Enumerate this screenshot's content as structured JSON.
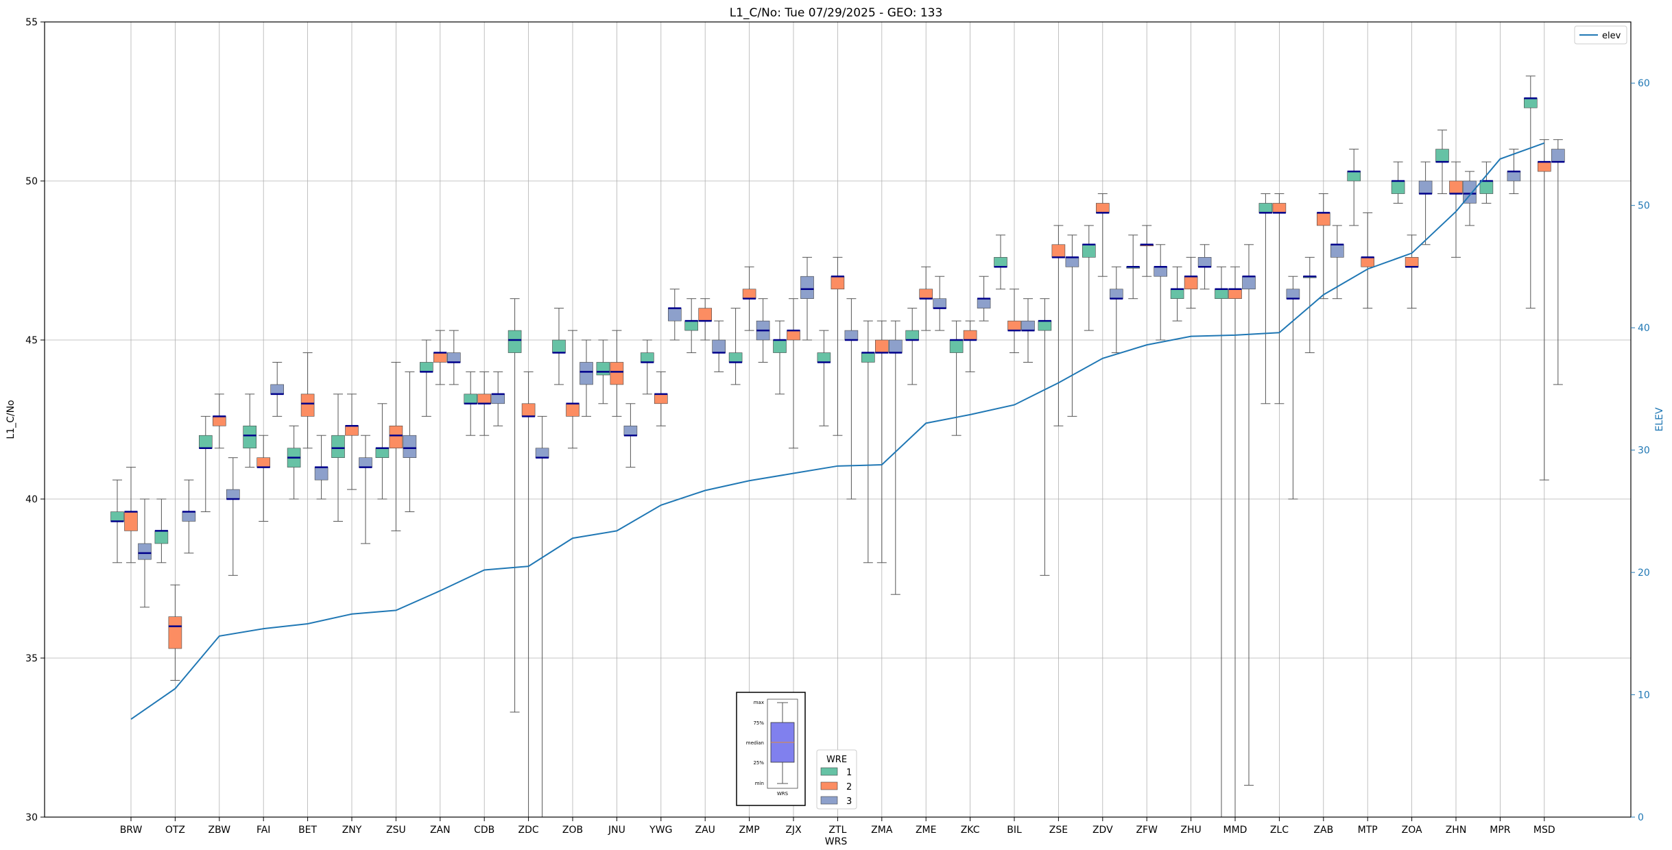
{
  "chart_data": {
    "type": "box",
    "title": "L1_C/No: Tue 07/29/2025 - GEO: 133",
    "xlabel": "WRS",
    "ylabel": "L1_C/No",
    "y2label": "ELEV",
    "ylim": [
      30,
      55
    ],
    "y2lim": [
      0,
      65
    ],
    "yticks": [
      30,
      35,
      40,
      45,
      50,
      55
    ],
    "y2ticks": [
      0,
      10,
      20,
      30,
      40,
      50,
      60
    ],
    "grid": true,
    "colors": {
      "1": "#66c2a5",
      "2": "#fc8d62",
      "3": "#8da0cb",
      "median": "#00008b",
      "elev": "#1f77b4",
      "whisker": "#555555"
    },
    "categories": [
      "BRW",
      "OTZ",
      "ZBW",
      "FAI",
      "BET",
      "ZNY",
      "ZSU",
      "ZAN",
      "CDB",
      "ZDC",
      "ZOB",
      "JNU",
      "YWG",
      "ZAU",
      "ZMP",
      "ZJX",
      "ZTL",
      "ZMA",
      "ZME",
      "ZKC",
      "BIL",
      "ZSE",
      "ZDV",
      "ZFW",
      "ZHU",
      "MMD",
      "ZLC",
      "ZAB",
      "MTP",
      "ZOA",
      "ZHN",
      "MPR",
      "MSD"
    ],
    "elev_legend": "elev",
    "legend_title": "WRE",
    "legend_labels": [
      "1",
      "2",
      "3"
    ],
    "key_labels": [
      "max",
      "75%",
      "median",
      "25%",
      "min",
      "WRS"
    ],
    "elev": [
      8.0,
      10.5,
      14.8,
      15.4,
      15.8,
      16.6,
      16.9,
      18.5,
      20.2,
      20.5,
      22.8,
      23.4,
      25.5,
      26.7,
      27.5,
      28.1,
      28.7,
      28.8,
      32.2,
      32.9,
      33.7,
      35.5,
      37.5,
      38.6,
      39.3,
      39.4,
      39.6,
      42.7,
      44.8,
      46.1,
      49.5,
      53.8,
      55.1
    ],
    "boxes": [
      {
        "wrs": "BRW",
        "wre": 1,
        "min": 38.0,
        "q1": 39.3,
        "median": 39.3,
        "q3": 39.6,
        "max": 40.6
      },
      {
        "wrs": "BRW",
        "wre": 2,
        "min": 38.0,
        "q1": 39.0,
        "median": 39.6,
        "q3": 39.6,
        "max": 41.0
      },
      {
        "wrs": "BRW",
        "wre": 3,
        "min": 36.6,
        "q1": 38.1,
        "median": 38.3,
        "q3": 38.6,
        "max": 40.0
      },
      {
        "wrs": "OTZ",
        "wre": 1,
        "min": 38.0,
        "q1": 38.6,
        "median": 39.0,
        "q3": 39.0,
        "max": 40.0
      },
      {
        "wrs": "OTZ",
        "wre": 2,
        "min": 34.3,
        "q1": 35.3,
        "median": 36.0,
        "q3": 36.3,
        "max": 37.3
      },
      {
        "wrs": "OTZ",
        "wre": 3,
        "min": 38.3,
        "q1": 39.3,
        "median": 39.6,
        "q3": 39.6,
        "max": 40.6
      },
      {
        "wrs": "ZBW",
        "wre": 1,
        "min": 39.6,
        "q1": 41.6,
        "median": 41.6,
        "q3": 42.0,
        "max": 42.6
      },
      {
        "wrs": "ZBW",
        "wre": 2,
        "min": 41.6,
        "q1": 42.3,
        "median": 42.6,
        "q3": 42.6,
        "max": 43.3
      },
      {
        "wrs": "ZBW",
        "wre": 3,
        "min": 37.6,
        "q1": 40.0,
        "median": 40.0,
        "q3": 40.3,
        "max": 41.3
      },
      {
        "wrs": "FAI",
        "wre": 1,
        "min": 41.0,
        "q1": 41.6,
        "median": 42.0,
        "q3": 42.3,
        "max": 43.3
      },
      {
        "wrs": "FAI",
        "wre": 2,
        "min": 39.3,
        "q1": 41.0,
        "median": 41.0,
        "q3": 41.3,
        "max": 42.0
      },
      {
        "wrs": "FAI",
        "wre": 3,
        "min": 42.6,
        "q1": 43.3,
        "median": 43.3,
        "q3": 43.6,
        "max": 44.3
      },
      {
        "wrs": "BET",
        "wre": 1,
        "min": 40.0,
        "q1": 41.0,
        "median": 41.3,
        "q3": 41.6,
        "max": 42.3
      },
      {
        "wrs": "BET",
        "wre": 2,
        "min": 41.6,
        "q1": 42.6,
        "median": 43.0,
        "q3": 43.3,
        "max": 44.6
      },
      {
        "wrs": "BET",
        "wre": 3,
        "min": 40.0,
        "q1": 40.6,
        "median": 41.0,
        "q3": 41.0,
        "max": 42.0
      },
      {
        "wrs": "ZNY",
        "wre": 1,
        "min": 39.3,
        "q1": 41.3,
        "median": 41.6,
        "q3": 42.0,
        "max": 43.3
      },
      {
        "wrs": "ZNY",
        "wre": 2,
        "min": 40.3,
        "q1": 42.0,
        "median": 42.3,
        "q3": 42.3,
        "max": 43.3
      },
      {
        "wrs": "ZNY",
        "wre": 3,
        "min": 38.6,
        "q1": 41.0,
        "median": 41.0,
        "q3": 41.3,
        "max": 42.0
      },
      {
        "wrs": "ZSU",
        "wre": 1,
        "min": 40.0,
        "q1": 41.3,
        "median": 41.6,
        "q3": 41.6,
        "max": 43.0
      },
      {
        "wrs": "ZSU",
        "wre": 2,
        "min": 39.0,
        "q1": 41.6,
        "median": 42.0,
        "q3": 42.3,
        "max": 44.3
      },
      {
        "wrs": "ZSU",
        "wre": 3,
        "min": 39.6,
        "q1": 41.3,
        "median": 41.6,
        "q3": 42.0,
        "max": 44.0
      },
      {
        "wrs": "ZAN",
        "wre": 1,
        "min": 42.6,
        "q1": 44.0,
        "median": 44.0,
        "q3": 44.3,
        "max": 45.0
      },
      {
        "wrs": "ZAN",
        "wre": 2,
        "min": 43.6,
        "q1": 44.3,
        "median": 44.6,
        "q3": 44.6,
        "max": 45.3
      },
      {
        "wrs": "ZAN",
        "wre": 3,
        "min": 43.6,
        "q1": 44.3,
        "median": 44.3,
        "q3": 44.6,
        "max": 45.3
      },
      {
        "wrs": "CDB",
        "wre": 1,
        "min": 42.0,
        "q1": 43.0,
        "median": 43.0,
        "q3": 43.3,
        "max": 44.0
      },
      {
        "wrs": "CDB",
        "wre": 2,
        "min": 42.0,
        "q1": 43.0,
        "median": 43.0,
        "q3": 43.3,
        "max": 44.0
      },
      {
        "wrs": "CDB",
        "wre": 3,
        "min": 42.3,
        "q1": 43.0,
        "median": 43.3,
        "q3": 43.3,
        "max": 44.0
      },
      {
        "wrs": "ZDC",
        "wre": 1,
        "min": 33.3,
        "q1": 44.6,
        "median": 45.0,
        "q3": 45.3,
        "max": 46.3
      },
      {
        "wrs": "ZDC",
        "wre": 2,
        "min": 30.0,
        "q1": 42.6,
        "median": 42.6,
        "q3": 43.0,
        "max": 44.0
      },
      {
        "wrs": "ZDC",
        "wre": 3,
        "min": 30.0,
        "q1": 41.3,
        "median": 41.3,
        "q3": 41.6,
        "max": 42.6
      },
      {
        "wrs": "ZOB",
        "wre": 1,
        "min": 43.6,
        "q1": 44.6,
        "median": 44.6,
        "q3": 45.0,
        "max": 46.0
      },
      {
        "wrs": "ZOB",
        "wre": 2,
        "min": 41.6,
        "q1": 42.6,
        "median": 43.0,
        "q3": 43.0,
        "max": 45.3
      },
      {
        "wrs": "ZOB",
        "wre": 3,
        "min": 42.6,
        "q1": 43.6,
        "median": 44.0,
        "q3": 44.3,
        "max": 45.0
      },
      {
        "wrs": "JNU",
        "wre": 1,
        "min": 43.0,
        "q1": 43.9,
        "median": 44.0,
        "q3": 44.3,
        "max": 45.0
      },
      {
        "wrs": "JNU",
        "wre": 2,
        "min": 42.6,
        "q1": 43.6,
        "median": 44.0,
        "q3": 44.3,
        "max": 45.3
      },
      {
        "wrs": "JNU",
        "wre": 3,
        "min": 41.0,
        "q1": 42.0,
        "median": 42.0,
        "q3": 42.3,
        "max": 43.0
      },
      {
        "wrs": "YWG",
        "wre": 1,
        "min": 43.3,
        "q1": 44.3,
        "median": 44.3,
        "q3": 44.6,
        "max": 45.0
      },
      {
        "wrs": "YWG",
        "wre": 2,
        "min": 42.3,
        "q1": 43.0,
        "median": 43.3,
        "q3": 43.3,
        "max": 44.0
      },
      {
        "wrs": "YWG",
        "wre": 3,
        "min": 45.0,
        "q1": 45.6,
        "median": 46.0,
        "q3": 46.0,
        "max": 46.6
      },
      {
        "wrs": "ZAU",
        "wre": 1,
        "min": 44.6,
        "q1": 45.3,
        "median": 45.6,
        "q3": 45.6,
        "max": 46.3
      },
      {
        "wrs": "ZAU",
        "wre": 2,
        "min": 45.0,
        "q1": 45.6,
        "median": 45.6,
        "q3": 46.0,
        "max": 46.3
      },
      {
        "wrs": "ZAU",
        "wre": 3,
        "min": 44.0,
        "q1": 44.6,
        "median": 44.6,
        "q3": 45.0,
        "max": 45.6
      },
      {
        "wrs": "ZMP",
        "wre": 1,
        "min": 43.6,
        "q1": 44.3,
        "median": 44.3,
        "q3": 44.6,
        "max": 46.0
      },
      {
        "wrs": "ZMP",
        "wre": 2,
        "min": 45.3,
        "q1": 46.3,
        "median": 46.3,
        "q3": 46.6,
        "max": 47.3
      },
      {
        "wrs": "ZMP",
        "wre": 3,
        "min": 44.3,
        "q1": 45.0,
        "median": 45.3,
        "q3": 45.6,
        "max": 46.3
      },
      {
        "wrs": "ZJX",
        "wre": 1,
        "min": 43.3,
        "q1": 44.6,
        "median": 45.0,
        "q3": 45.0,
        "max": 45.6
      },
      {
        "wrs": "ZJX",
        "wre": 2,
        "min": 41.6,
        "q1": 45.0,
        "median": 45.3,
        "q3": 45.3,
        "max": 46.3
      },
      {
        "wrs": "ZJX",
        "wre": 3,
        "min": 45.0,
        "q1": 46.3,
        "median": 46.6,
        "q3": 47.0,
        "max": 47.6
      },
      {
        "wrs": "ZTL",
        "wre": 1,
        "min": 42.3,
        "q1": 44.3,
        "median": 44.3,
        "q3": 44.6,
        "max": 45.3
      },
      {
        "wrs": "ZTL",
        "wre": 2,
        "min": 42.0,
        "q1": 46.6,
        "median": 47.0,
        "q3": 47.0,
        "max": 47.6
      },
      {
        "wrs": "ZTL",
        "wre": 3,
        "min": 40.0,
        "q1": 45.0,
        "median": 45.0,
        "q3": 45.3,
        "max": 46.3
      },
      {
        "wrs": "ZMA",
        "wre": 1,
        "min": 38.0,
        "q1": 44.3,
        "median": 44.6,
        "q3": 44.6,
        "max": 45.6
      },
      {
        "wrs": "ZMA",
        "wre": 2,
        "min": 38.0,
        "q1": 44.6,
        "median": 44.6,
        "q3": 45.0,
        "max": 45.6
      },
      {
        "wrs": "ZMA",
        "wre": 3,
        "min": 37.0,
        "q1": 44.6,
        "median": 44.6,
        "q3": 45.0,
        "max": 45.6
      },
      {
        "wrs": "ZME",
        "wre": 1,
        "min": 43.6,
        "q1": 45.0,
        "median": 45.0,
        "q3": 45.3,
        "max": 46.0
      },
      {
        "wrs": "ZME",
        "wre": 2,
        "min": 45.3,
        "q1": 46.3,
        "median": 46.3,
        "q3": 46.6,
        "max": 47.3
      },
      {
        "wrs": "ZME",
        "wre": 3,
        "min": 45.3,
        "q1": 46.0,
        "median": 46.0,
        "q3": 46.3,
        "max": 47.0
      },
      {
        "wrs": "ZKC",
        "wre": 1,
        "min": 42.0,
        "q1": 44.6,
        "median": 45.0,
        "q3": 45.0,
        "max": 45.6
      },
      {
        "wrs": "ZKC",
        "wre": 2,
        "min": 44.0,
        "q1": 45.0,
        "median": 45.0,
        "q3": 45.3,
        "max": 45.6
      },
      {
        "wrs": "ZKC",
        "wre": 3,
        "min": 45.6,
        "q1": 46.0,
        "median": 46.3,
        "q3": 46.3,
        "max": 47.0
      },
      {
        "wrs": "BIL",
        "wre": 1,
        "min": 46.6,
        "q1": 47.3,
        "median": 47.3,
        "q3": 47.6,
        "max": 48.3
      },
      {
        "wrs": "BIL",
        "wre": 2,
        "min": 44.6,
        "q1": 45.3,
        "median": 45.3,
        "q3": 45.6,
        "max": 46.6
      },
      {
        "wrs": "BIL",
        "wre": 3,
        "min": 44.3,
        "q1": 45.3,
        "median": 45.3,
        "q3": 45.6,
        "max": 46.3
      },
      {
        "wrs": "ZSE",
        "wre": 1,
        "min": 37.6,
        "q1": 45.3,
        "median": 45.6,
        "q3": 45.6,
        "max": 46.3
      },
      {
        "wrs": "ZSE",
        "wre": 2,
        "min": 42.3,
        "q1": 47.6,
        "median": 47.6,
        "q3": 48.0,
        "max": 48.6
      },
      {
        "wrs": "ZSE",
        "wre": 3,
        "min": 42.6,
        "q1": 47.3,
        "median": 47.6,
        "q3": 47.6,
        "max": 48.3
      },
      {
        "wrs": "ZDV",
        "wre": 1,
        "min": 45.3,
        "q1": 47.6,
        "median": 48.0,
        "q3": 48.0,
        "max": 48.6
      },
      {
        "wrs": "ZDV",
        "wre": 2,
        "min": 47.0,
        "q1": 49.0,
        "median": 49.0,
        "q3": 49.3,
        "max": 49.6
      },
      {
        "wrs": "ZDV",
        "wre": 3,
        "min": 44.6,
        "q1": 46.3,
        "median": 46.3,
        "q3": 46.6,
        "max": 47.3
      },
      {
        "wrs": "ZFW",
        "wre": 1,
        "min": 46.3,
        "q1": 47.3,
        "median": 47.3,
        "q3": 47.3,
        "max": 48.3
      },
      {
        "wrs": "ZFW",
        "wre": 2,
        "min": 47.0,
        "q1": 48.0,
        "median": 48.0,
        "q3": 48.0,
        "max": 48.6
      },
      {
        "wrs": "ZFW",
        "wre": 3,
        "min": 45.0,
        "q1": 47.0,
        "median": 47.3,
        "q3": 47.3,
        "max": 48.0
      },
      {
        "wrs": "ZHU",
        "wre": 1,
        "min": 45.6,
        "q1": 46.3,
        "median": 46.6,
        "q3": 46.6,
        "max": 47.3
      },
      {
        "wrs": "ZHU",
        "wre": 2,
        "min": 46.0,
        "q1": 46.6,
        "median": 47.0,
        "q3": 47.0,
        "max": 47.6
      },
      {
        "wrs": "ZHU",
        "wre": 3,
        "min": 46.6,
        "q1": 47.3,
        "median": 47.3,
        "q3": 47.6,
        "max": 48.0
      },
      {
        "wrs": "MMD",
        "wre": 1,
        "min": 30.0,
        "q1": 46.3,
        "median": 46.6,
        "q3": 46.6,
        "max": 47.3
      },
      {
        "wrs": "MMD",
        "wre": 2,
        "min": 30.0,
        "q1": 46.3,
        "median": 46.6,
        "q3": 46.6,
        "max": 47.3
      },
      {
        "wrs": "MMD",
        "wre": 3,
        "min": 31.0,
        "q1": 46.6,
        "median": 47.0,
        "q3": 47.0,
        "max": 48.0
      },
      {
        "wrs": "ZLC",
        "wre": 1,
        "min": 43.0,
        "q1": 49.0,
        "median": 49.0,
        "q3": 49.3,
        "max": 49.6
      },
      {
        "wrs": "ZLC",
        "wre": 2,
        "min": 43.0,
        "q1": 49.0,
        "median": 49.0,
        "q3": 49.3,
        "max": 49.6
      },
      {
        "wrs": "ZLC",
        "wre": 3,
        "min": 40.0,
        "q1": 46.3,
        "median": 46.3,
        "q3": 46.6,
        "max": 47.0
      },
      {
        "wrs": "ZAB",
        "wre": 1,
        "min": 44.6,
        "q1": 47.0,
        "median": 47.0,
        "q3": 47.0,
        "max": 47.6
      },
      {
        "wrs": "ZAB",
        "wre": 2,
        "min": 46.3,
        "q1": 48.6,
        "median": 49.0,
        "q3": 49.0,
        "max": 49.6
      },
      {
        "wrs": "ZAB",
        "wre": 3,
        "min": 46.3,
        "q1": 47.6,
        "median": 48.0,
        "q3": 48.0,
        "max": 48.6
      },
      {
        "wrs": "MTP",
        "wre": 1,
        "min": 48.6,
        "q1": 50.0,
        "median": 50.3,
        "q3": 50.3,
        "max": 51.0
      },
      {
        "wrs": "MTP",
        "wre": 2,
        "min": 46.0,
        "q1": 47.3,
        "median": 47.6,
        "q3": 47.6,
        "max": 49.0
      },
      {
        "wrs": "ZOA",
        "wre": 1,
        "min": 49.3,
        "q1": 49.6,
        "median": 50.0,
        "q3": 50.0,
        "max": 50.6
      },
      {
        "wrs": "ZOA",
        "wre": 2,
        "min": 46.0,
        "q1": 47.3,
        "median": 47.3,
        "q3": 47.6,
        "max": 48.3
      },
      {
        "wrs": "ZOA",
        "wre": 3,
        "min": 48.0,
        "q1": 49.6,
        "median": 49.6,
        "q3": 50.0,
        "max": 50.6
      },
      {
        "wrs": "ZHN",
        "wre": 1,
        "min": 49.6,
        "q1": 50.6,
        "median": 50.6,
        "q3": 51.0,
        "max": 51.6
      },
      {
        "wrs": "ZHN",
        "wre": 2,
        "min": 47.6,
        "q1": 49.6,
        "median": 49.6,
        "q3": 50.0,
        "max": 50.6
      },
      {
        "wrs": "ZHN",
        "wre": 3,
        "min": 48.6,
        "q1": 49.3,
        "median": 49.6,
        "q3": 50.0,
        "max": 50.3
      },
      {
        "wrs": "MPR",
        "wre": 1,
        "min": 49.3,
        "q1": 49.6,
        "median": 50.0,
        "q3": 50.0,
        "max": 50.6
      },
      {
        "wrs": "MPR",
        "wre": 3,
        "min": 49.6,
        "q1": 50.0,
        "median": 50.3,
        "q3": 50.3,
        "max": 51.0
      },
      {
        "wrs": "MSD",
        "wre": 1,
        "min": 46.0,
        "q1": 52.3,
        "median": 52.6,
        "q3": 52.6,
        "max": 53.3
      },
      {
        "wrs": "MSD",
        "wre": 2,
        "min": 40.6,
        "q1": 50.3,
        "median": 50.6,
        "q3": 50.6,
        "max": 51.3
      },
      {
        "wrs": "MSD",
        "wre": 3,
        "min": 43.6,
        "q1": 50.6,
        "median": 50.6,
        "q3": 51.0,
        "max": 51.3
      }
    ]
  }
}
